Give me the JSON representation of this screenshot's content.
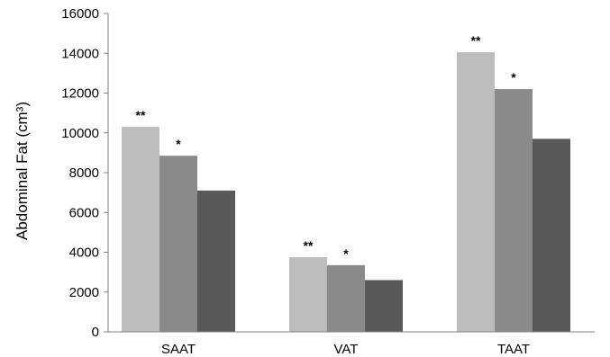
{
  "chart_data": {
    "type": "bar",
    "categories": [
      "SAAT",
      "VAT",
      "TAAT"
    ],
    "series": [
      {
        "values": [
          10300,
          3750,
          14050
        ],
        "color": "#bdbdbd"
      },
      {
        "values": [
          8850,
          3350,
          12200
        ],
        "color": "#8a8a8a"
      },
      {
        "values": [
          7100,
          2600,
          9700
        ],
        "color": "#595959"
      }
    ],
    "annotations": [
      [
        "**",
        "*",
        ""
      ],
      [
        "**",
        "*",
        ""
      ],
      [
        "**",
        "*",
        ""
      ]
    ],
    "title": "",
    "xlabel": "",
    "ylabel": "Abdominal Fat (cm³)",
    "ylim": [
      0,
      16000
    ],
    "yticks": [
      0,
      2000,
      4000,
      6000,
      8000,
      10000,
      12000,
      14000,
      16000
    ],
    "grid": false,
    "legend": "none"
  }
}
